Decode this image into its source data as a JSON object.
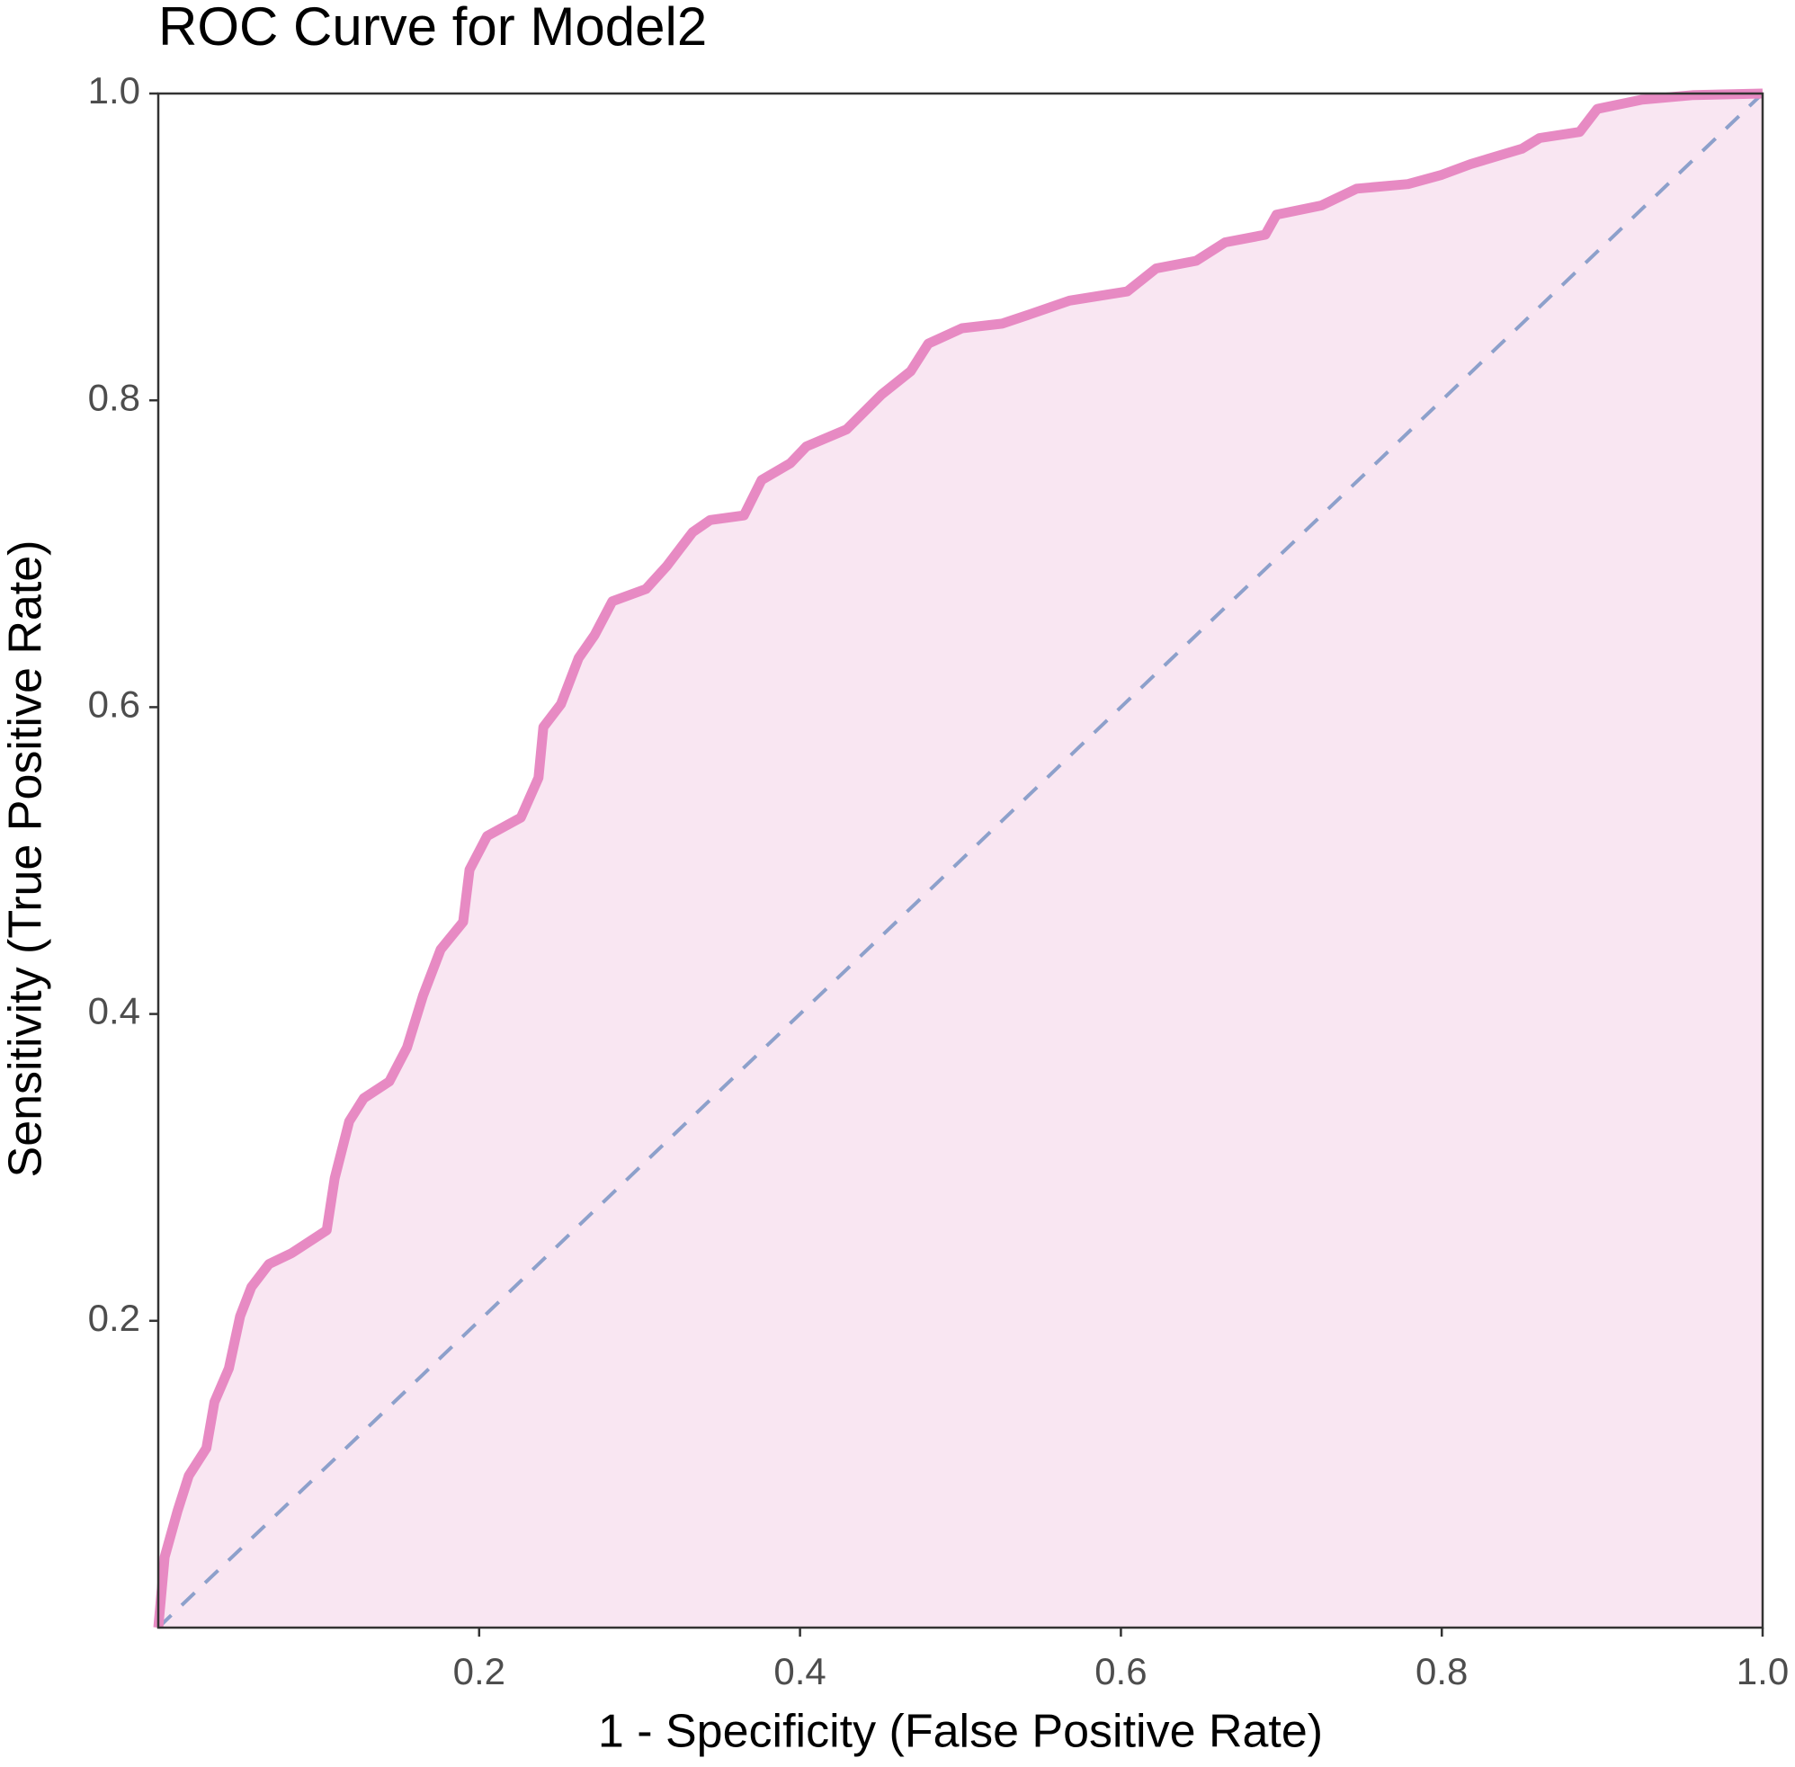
{
  "chart_data": {
    "type": "line",
    "title": "ROC Curve for Model2",
    "xlabel": "1 - Specificity (False Positive Rate)",
    "ylabel": "Sensitivity (True Positive Rate)",
    "x": [
      0,
      0.004,
      0.012,
      0.019,
      0.03,
      0.035,
      0.044,
      0.051,
      0.058,
      0.069,
      0.083,
      0.105,
      0.11,
      0.119,
      0.128,
      0.144,
      0.155,
      0.165,
      0.176,
      0.19,
      0.194,
      0.205,
      0.226,
      0.237,
      0.24,
      0.251,
      0.262,
      0.272,
      0.283,
      0.304,
      0.317,
      0.333,
      0.344,
      0.365,
      0.376,
      0.394,
      0.404,
      0.429,
      0.451,
      0.469,
      0.48,
      0.501,
      0.526,
      0.543,
      0.568,
      0.604,
      0.622,
      0.647,
      0.665,
      0.69,
      0.697,
      0.725,
      0.747,
      0.779,
      0.8,
      0.818,
      0.85,
      0.861,
      0.886,
      0.897,
      0.925,
      0.957,
      1
    ],
    "values": [
      0,
      0.046,
      0.076,
      0.099,
      0.117,
      0.147,
      0.169,
      0.203,
      0.222,
      0.237,
      0.244,
      0.259,
      0.293,
      0.33,
      0.345,
      0.356,
      0.378,
      0.412,
      0.442,
      0.46,
      0.494,
      0.516,
      0.528,
      0.554,
      0.587,
      0.602,
      0.632,
      0.647,
      0.669,
      0.677,
      0.692,
      0.714,
      0.722,
      0.725,
      0.748,
      0.759,
      0.77,
      0.781,
      0.804,
      0.819,
      0.837,
      0.847,
      0.85,
      0.856,
      0.865,
      0.871,
      0.886,
      0.891,
      0.903,
      0.908,
      0.921,
      0.927,
      0.938,
      0.941,
      0.947,
      0.954,
      0.964,
      0.971,
      0.975,
      0.99,
      0.996,
      0.999,
      1
    ],
    "color": "#e78ac3",
    "fill_color": "#f9e6f2",
    "diagonal_color": "#8da0cb",
    "xlim": [
      0,
      1
    ],
    "ylim": [
      0,
      1
    ],
    "xticks": [
      0.2,
      0.4,
      0.6,
      0.8,
      {
        "value": 1,
        "label": "1.0"
      }
    ],
    "yticks": [
      0.2,
      0.4,
      0.6,
      0.8,
      {
        "value": 1,
        "label": "1.0"
      }
    ],
    "grid": false
  }
}
